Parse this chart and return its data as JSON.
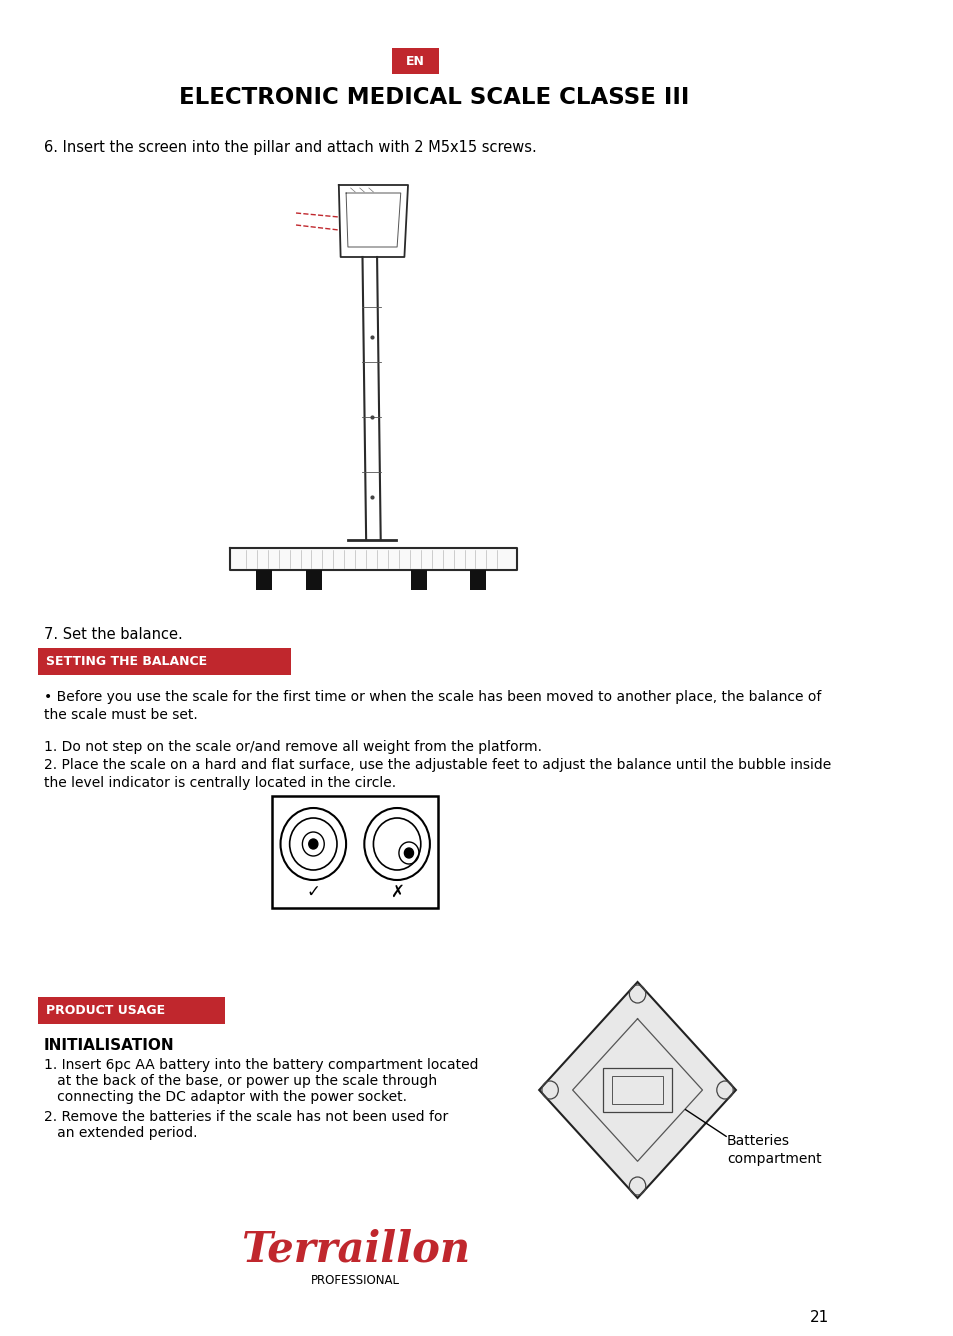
{
  "title": "ELECTRONIC MEDICAL SCALE CLASSE III",
  "lang_badge": "EN",
  "lang_badge_color": "#c0272d",
  "text_color": "#000000",
  "red_color": "#c0272d",
  "bg_color": "#ffffff",
  "page_number": "21",
  "step6_text": "6. Insert the screen into the pillar and attach with 2 M5x15 screws.",
  "step7_text": "7. Set the balance.",
  "section1_title": "SETTING THE BALANCE",
  "bullet1_line1": "• Before you use the scale for the first time or when the scale has been moved to another place, the balance of",
  "bullet1_line2": "the scale must be set.",
  "balance_step1": "1. Do not step on the scale or/and remove all weight from the platform.",
  "balance_step2": "2. Place the scale on a hard and flat surface, use the adjustable feet to adjust the balance until the bubble inside",
  "balance_step2b": "the level indicator is centrally located in the circle.",
  "section2_title": "PRODUCT USAGE",
  "init_title": "INITIALISATION",
  "init_1a": "1. Insert 6pc AA battery into the battery compartment located",
  "init_1b": "   at the back of the base, or power up the scale through",
  "init_1c": "   connecting the DC adaptor with the power socket.",
  "init_2a": "2. Remove the batteries if the scale has not been used for",
  "init_2b": "   an extended period.",
  "batteries_line1": "Batteries",
  "batteries_line2": "compartment",
  "terraillon_text": "Terraillon",
  "professional_text": "PROFESSIONAL"
}
